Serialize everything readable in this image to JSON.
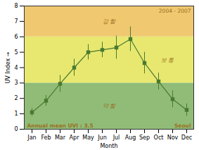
{
  "chart_data": {
    "type": "line",
    "categories": [
      "Jan",
      "Feb",
      "Mar",
      "Apr",
      "May",
      "Jun",
      "Jul",
      "Aug",
      "Sep",
      "Oct",
      "Nov",
      "Dec"
    ],
    "values": [
      1.1,
      1.85,
      2.95,
      4.0,
      5.0,
      5.15,
      5.3,
      5.85,
      4.3,
      3.1,
      1.95,
      1.25
    ],
    "errors": [
      0.25,
      0.35,
      0.55,
      0.55,
      0.5,
      0.5,
      0.75,
      0.8,
      0.7,
      0.55,
      0.55,
      0.4
    ],
    "color": "#4a7a30",
    "marker": "square",
    "xlabel": "Month",
    "ylabel": "UV Index",
    "ylim": [
      0,
      8
    ],
    "yticks": [
      0,
      1,
      2,
      3,
      4,
      5,
      6,
      7,
      8
    ],
    "zones": [
      {
        "name": "약 함",
        "range": [
          0,
          3
        ],
        "color": "#90bc78",
        "label_color": "#9a7020"
      },
      {
        "name": "보 통",
        "range": [
          3,
          6
        ],
        "color": "#e8e870",
        "label_color": "#9a7020"
      },
      {
        "name": "강 함",
        "range": [
          6,
          8
        ],
        "color": "#f0c870",
        "label_color": "#9a7020"
      }
    ],
    "annotations": [
      {
        "text": "Annual mean UVI : 3.5",
        "color": "#9a7020"
      },
      {
        "text": "Seoul",
        "color": "#9a7020"
      },
      {
        "text": "2004 - 2007",
        "color": "#9a7020"
      }
    ]
  }
}
